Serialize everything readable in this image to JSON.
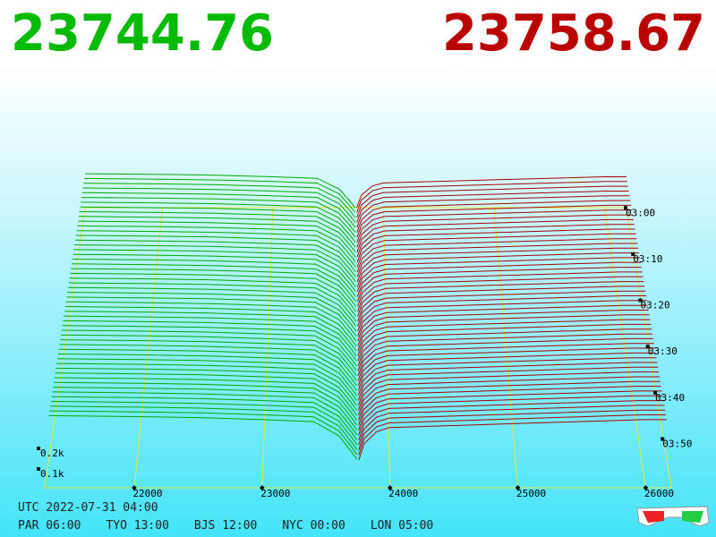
{
  "header": {
    "bid": "23744.76",
    "ask": "23758.67"
  },
  "chart_data": {
    "type": "depth3d",
    "xlim": [
      21300,
      26200
    ],
    "xticks": [
      22000,
      23000,
      24000,
      25000,
      26000
    ],
    "depth_ticks": [
      {
        "value": 0.1,
        "label": "0.1k"
      },
      {
        "value": 0.2,
        "label": "0.2k"
      }
    ],
    "time_ticks": [
      "03:00",
      "03:10",
      "03:20",
      "03:30",
      "03:40",
      "03:50"
    ],
    "bids": {
      "color": "#00aa00",
      "price": [
        21300,
        22000,
        22500,
        23000,
        23400,
        23600,
        23700,
        23744.76
      ],
      "depth": [
        0.22,
        0.215,
        0.21,
        0.2,
        0.19,
        0.12,
        0.04,
        0
      ]
    },
    "asks": {
      "color": "#aa0000",
      "price": [
        23758.67,
        23800,
        23900,
        24000,
        25000,
        26000,
        26200
      ],
      "depth": [
        0,
        0.08,
        0.14,
        0.16,
        0.18,
        0.2,
        0.2
      ]
    }
  },
  "footer": {
    "utc": "UTC 2022-07-31 04:00",
    "clocks": [
      "PAR 06:00",
      "TYO 13:00",
      "BJS 12:00",
      "NYC 00:00",
      "LON 05:00"
    ]
  }
}
